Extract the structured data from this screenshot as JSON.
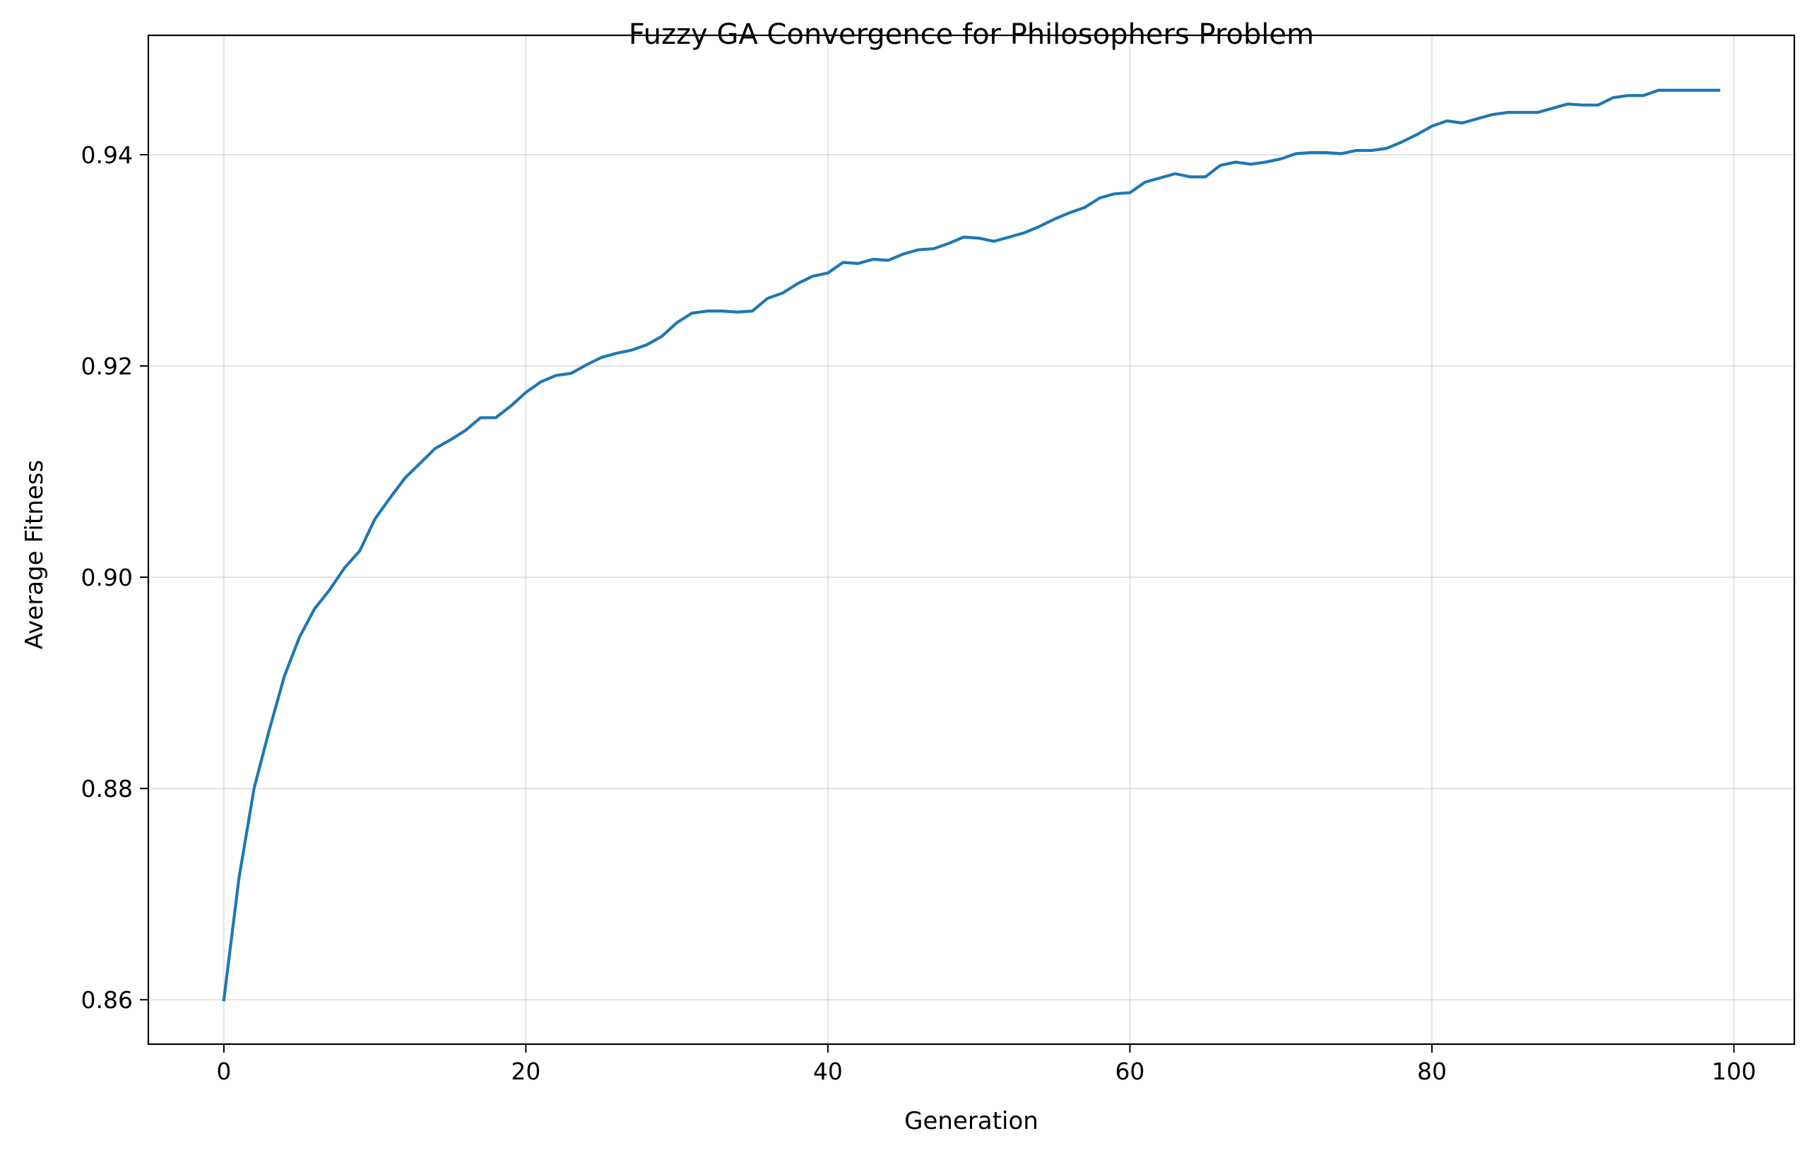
{
  "chart_data": {
    "type": "line",
    "title": "Fuzzy GA Convergence for Philosophers Problem",
    "xlabel": "Generation",
    "ylabel": "Average Fitness",
    "xlim": [
      -5,
      104
    ],
    "ylim": [
      0.8558,
      0.9513
    ],
    "xticks": [
      0,
      20,
      40,
      60,
      80,
      100
    ],
    "yticks": [
      0.86,
      0.88,
      0.9,
      0.92,
      0.94
    ],
    "xtick_labels": [
      "0",
      "20",
      "40",
      "60",
      "80",
      "100"
    ],
    "ytick_labels": [
      "0.86",
      "0.88",
      "0.90",
      "0.92",
      "0.94"
    ],
    "grid": true,
    "legend": "none",
    "series": [
      {
        "color": "#1f77b4",
        "x": [
          0,
          1,
          2,
          3,
          4,
          5,
          6,
          7,
          8,
          9,
          10,
          11,
          12,
          13,
          14,
          15,
          16,
          17,
          18,
          19,
          20,
          21,
          22,
          23,
          24,
          25,
          26,
          27,
          28,
          29,
          30,
          31,
          32,
          33,
          34,
          35,
          36,
          37,
          38,
          39,
          40,
          41,
          42,
          43,
          44,
          45,
          46,
          47,
          48,
          49,
          50,
          51,
          52,
          53,
          54,
          55,
          56,
          57,
          58,
          59,
          60,
          61,
          62,
          63,
          64,
          65,
          66,
          67,
          68,
          69,
          70,
          71,
          72,
          73,
          74,
          75,
          76,
          77,
          78,
          79,
          80,
          81,
          82,
          83,
          84,
          85,
          86,
          87,
          88,
          89,
          90,
          91,
          92,
          93,
          94,
          95,
          96,
          97,
          98,
          99
        ],
        "values": [
          0.86,
          0.8715,
          0.88,
          0.8855,
          0.8906,
          0.8943,
          0.897,
          0.8988,
          0.9009,
          0.9025,
          0.9055,
          0.9075,
          0.9094,
          0.9108,
          0.9122,
          0.913,
          0.9139,
          0.9151,
          0.9151,
          0.9162,
          0.9175,
          0.9185,
          0.9191,
          0.9193,
          0.9201,
          0.9208,
          0.9212,
          0.9215,
          0.922,
          0.9228,
          0.9241,
          0.925,
          0.9252,
          0.9252,
          0.9251,
          0.9252,
          0.9264,
          0.9269,
          0.9278,
          0.9285,
          0.9288,
          0.9298,
          0.9297,
          0.9301,
          0.93,
          0.9306,
          0.931,
          0.9311,
          0.9316,
          0.9322,
          0.9321,
          0.9318,
          0.9322,
          0.9326,
          0.9332,
          0.9339,
          0.9345,
          0.935,
          0.9359,
          0.9363,
          0.9364,
          0.9374,
          0.9378,
          0.9382,
          0.9379,
          0.9379,
          0.939,
          0.9393,
          0.9391,
          0.9393,
          0.9396,
          0.9401,
          0.9402,
          0.9402,
          0.9401,
          0.9404,
          0.9404,
          0.9406,
          0.9412,
          0.9419,
          0.9427,
          0.9432,
          0.943,
          0.9434,
          0.9438,
          0.944,
          0.944,
          0.944,
          0.9444,
          0.9448,
          0.9447,
          0.9447,
          0.9454,
          0.9456,
          0.9456,
          0.9461,
          0.9461,
          0.9461,
          0.9461,
          0.9461
        ]
      }
    ]
  }
}
